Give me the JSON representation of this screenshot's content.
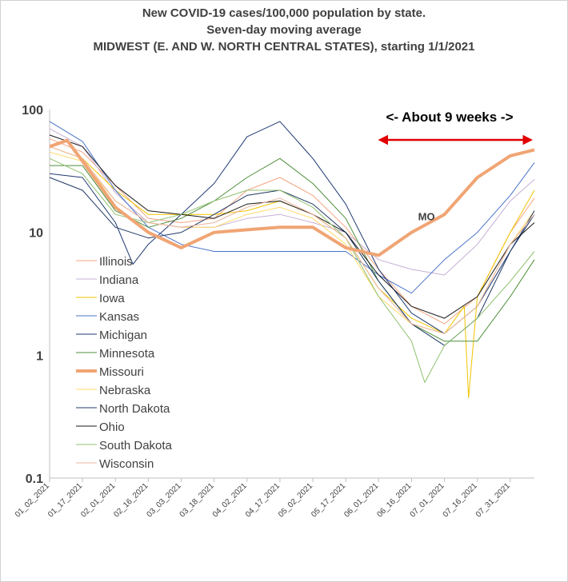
{
  "chart_data": {
    "type": "line",
    "title": [
      "New COVID-19 cases/100,000 population by state.",
      "Seven-day moving average",
      "MIDWEST (E. AND W. NORTH CENTRAL STATES), starting 1/1/2021"
    ],
    "xlabel": "",
    "ylabel": "",
    "yscale": "log",
    "ylim": [
      0.1,
      100
    ],
    "y_ticks": [
      "100",
      "10",
      "1",
      "0.1"
    ],
    "x_ticks": [
      "01_02_2021",
      "01_17_2021",
      "02_01_2021",
      "02_16_2021",
      "03_03_2021",
      "03_18_2021",
      "04_02_2021",
      "04_17_2021",
      "05_02_2021",
      "05_17_2021",
      "06_01_2021",
      "06_16_2021",
      "07_01_2021",
      "07_16_2021",
      "07_31_2021"
    ],
    "x_range": [
      "2021-01-02",
      "2021-08-11"
    ],
    "grid": false,
    "legend_position": "left-center",
    "annotations": {
      "span_text": "<- About 9 weeks ->",
      "span_start": "2021-06-03",
      "span_end": "2021-08-08",
      "span_color": "#e00000",
      "mo_label": "MO",
      "mo_label_at": [
        "2021-06-19",
        13.5
      ]
    },
    "series": [
      {
        "name": "Illinois",
        "color": "#f4a582",
        "width": 1,
        "dates": [
          "2021-01-02",
          "2021-01-17",
          "2021-02-01",
          "2021-02-16",
          "2021-03-03",
          "2021-03-18",
          "2021-04-02",
          "2021-04-17",
          "2021-05-02",
          "2021-05-17",
          "2021-06-01",
          "2021-06-16",
          "2021-07-01",
          "2021-07-16",
          "2021-07-31",
          "2021-08-11"
        ],
        "values": [
          58,
          45,
          24,
          13,
          12,
          13,
          22,
          28,
          20,
          11,
          5,
          2.5,
          1.8,
          3,
          10,
          19
        ]
      },
      {
        "name": "Indiana",
        "color": "#c5b0d5",
        "width": 1,
        "dates": [
          "2021-01-02",
          "2021-01-17",
          "2021-02-01",
          "2021-02-16",
          "2021-03-03",
          "2021-03-18",
          "2021-04-02",
          "2021-04-17",
          "2021-05-02",
          "2021-05-17",
          "2021-06-01",
          "2021-06-16",
          "2021-07-01",
          "2021-07-16",
          "2021-07-31",
          "2021-08-11"
        ],
        "values": [
          70,
          50,
          21,
          12,
          11,
          11,
          13,
          14,
          12,
          10,
          6,
          5,
          4.5,
          8,
          18,
          27
        ]
      },
      {
        "name": "Iowa",
        "color": "#f2c400",
        "width": 1,
        "dates": [
          "2021-01-02",
          "2021-01-17",
          "2021-02-01",
          "2021-02-16",
          "2021-03-03",
          "2021-03-18",
          "2021-04-02",
          "2021-04-17",
          "2021-05-02",
          "2021-05-17",
          "2021-06-01",
          "2021-06-16",
          "2021-07-01",
          "2021-07-10",
          "2021-07-12",
          "2021-07-16",
          "2021-07-31",
          "2021-08-11"
        ],
        "values": [
          50,
          40,
          22,
          14,
          14,
          14,
          15,
          18,
          14,
          9,
          3.5,
          2,
          1.5,
          2.5,
          0.45,
          3,
          10,
          22
        ]
      },
      {
        "name": "Kansas",
        "color": "#4a74c9",
        "width": 1,
        "dates": [
          "2021-01-02",
          "2021-01-17",
          "2021-02-01",
          "2021-02-16",
          "2021-03-03",
          "2021-03-18",
          "2021-04-02",
          "2021-04-17",
          "2021-05-02",
          "2021-05-17",
          "2021-06-01",
          "2021-06-16",
          "2021-07-01",
          "2021-07-16",
          "2021-07-31",
          "2021-08-11"
        ],
        "values": [
          80,
          55,
          22,
          11,
          8,
          7,
          7,
          7,
          7,
          7,
          4.5,
          3.2,
          6,
          10,
          20,
          37
        ]
      },
      {
        "name": "Michigan",
        "color": "#1f3a73",
        "width": 1,
        "dates": [
          "2021-01-02",
          "2021-01-17",
          "2021-02-01",
          "2021-02-09",
          "2021-02-16",
          "2021-03-03",
          "2021-03-18",
          "2021-04-02",
          "2021-04-17",
          "2021-05-02",
          "2021-05-17",
          "2021-06-01",
          "2021-06-16",
          "2021-07-01",
          "2021-07-16",
          "2021-07-31",
          "2021-08-11"
        ],
        "values": [
          30,
          28,
          12,
          5.5,
          8,
          14,
          25,
          60,
          80,
          40,
          17,
          5,
          2.2,
          1.5,
          2.5,
          7,
          14
        ]
      },
      {
        "name": "Minnesota",
        "color": "#4e8f3a",
        "width": 1,
        "dates": [
          "2021-01-02",
          "2021-01-17",
          "2021-02-01",
          "2021-02-16",
          "2021-03-03",
          "2021-03-18",
          "2021-04-02",
          "2021-04-17",
          "2021-05-02",
          "2021-05-17",
          "2021-06-01",
          "2021-06-16",
          "2021-07-01",
          "2021-07-16",
          "2021-07-31",
          "2021-08-11"
        ],
        "values": [
          35,
          35,
          15,
          11,
          13,
          18,
          28,
          40,
          25,
          13,
          4,
          1.8,
          1.3,
          1.3,
          3,
          6
        ]
      },
      {
        "name": "Missouri",
        "color": "#f0a574",
        "width": 4,
        "dates": [
          "2021-01-02",
          "2021-01-10",
          "2021-01-17",
          "2021-02-01",
          "2021-02-16",
          "2021-03-03",
          "2021-03-18",
          "2021-04-02",
          "2021-04-17",
          "2021-05-02",
          "2021-05-17",
          "2021-06-01",
          "2021-06-16",
          "2021-07-01",
          "2021-07-16",
          "2021-07-31",
          "2021-08-11"
        ],
        "values": [
          50,
          56,
          38,
          16,
          10,
          7.5,
          10,
          10.5,
          11,
          11,
          7.5,
          6.5,
          10,
          14,
          28,
          42,
          47
        ]
      },
      {
        "name": "Nebraska",
        "color": "#ffd966",
        "width": 1,
        "dates": [
          "2021-01-02",
          "2021-01-17",
          "2021-02-01",
          "2021-02-16",
          "2021-03-03",
          "2021-03-18",
          "2021-04-02",
          "2021-04-17",
          "2021-05-02",
          "2021-05-17",
          "2021-06-01",
          "2021-06-16",
          "2021-07-01",
          "2021-07-16",
          "2021-07-31",
          "2021-08-11"
        ],
        "values": [
          45,
          38,
          18,
          12,
          11,
          11,
          14,
          16,
          13,
          8,
          3,
          1.8,
          1.5,
          2.5,
          8,
          15
        ]
      },
      {
        "name": "North Dakota",
        "color": "#203864",
        "width": 1,
        "dates": [
          "2021-01-02",
          "2021-01-17",
          "2021-02-01",
          "2021-02-16",
          "2021-03-03",
          "2021-03-18",
          "2021-04-02",
          "2021-04-17",
          "2021-05-02",
          "2021-05-17",
          "2021-06-01",
          "2021-06-16",
          "2021-07-01",
          "2021-07-16",
          "2021-07-31",
          "2021-08-11"
        ],
        "values": [
          28,
          22,
          11,
          9,
          10,
          14,
          20,
          22,
          17,
          10,
          4,
          1.8,
          1.2,
          2,
          7,
          15
        ]
      },
      {
        "name": "Ohio",
        "color": "#1a1a1a",
        "width": 1,
        "dates": [
          "2021-01-02",
          "2021-01-17",
          "2021-02-01",
          "2021-02-16",
          "2021-03-03",
          "2021-03-18",
          "2021-04-02",
          "2021-04-17",
          "2021-05-02",
          "2021-05-17",
          "2021-06-01",
          "2021-06-16",
          "2021-07-01",
          "2021-07-16",
          "2021-07-31",
          "2021-08-11"
        ],
        "values": [
          62,
          50,
          24,
          15,
          14,
          13,
          17,
          18,
          14,
          10,
          4.5,
          2.5,
          2,
          3,
          8,
          12
        ]
      },
      {
        "name": "South Dakota",
        "color": "#8fc16e",
        "width": 1,
        "dates": [
          "2021-01-02",
          "2021-01-17",
          "2021-02-01",
          "2021-02-16",
          "2021-03-03",
          "2021-03-18",
          "2021-04-02",
          "2021-04-17",
          "2021-05-02",
          "2021-05-17",
          "2021-06-01",
          "2021-06-16",
          "2021-06-22",
          "2021-07-01",
          "2021-07-16",
          "2021-07-31",
          "2021-08-11"
        ],
        "values": [
          40,
          30,
          14,
          12,
          14,
          18,
          22,
          22,
          16,
          9,
          3,
          1.3,
          0.6,
          1.2,
          2,
          4,
          7
        ]
      },
      {
        "name": "Wisconsin",
        "color": "#e8b4a0",
        "width": 1,
        "dates": [
          "2021-01-02",
          "2021-01-17",
          "2021-02-01",
          "2021-02-16",
          "2021-03-03",
          "2021-03-18",
          "2021-04-02",
          "2021-04-17",
          "2021-05-02",
          "2021-05-17",
          "2021-06-01",
          "2021-06-16",
          "2021-07-01",
          "2021-07-16",
          "2021-07-31",
          "2021-08-11"
        ],
        "values": [
          50,
          40,
          18,
          12,
          11,
          12,
          16,
          19,
          14,
          9,
          3.5,
          1.8,
          1.5,
          2.5,
          8,
          14
        ]
      }
    ]
  }
}
